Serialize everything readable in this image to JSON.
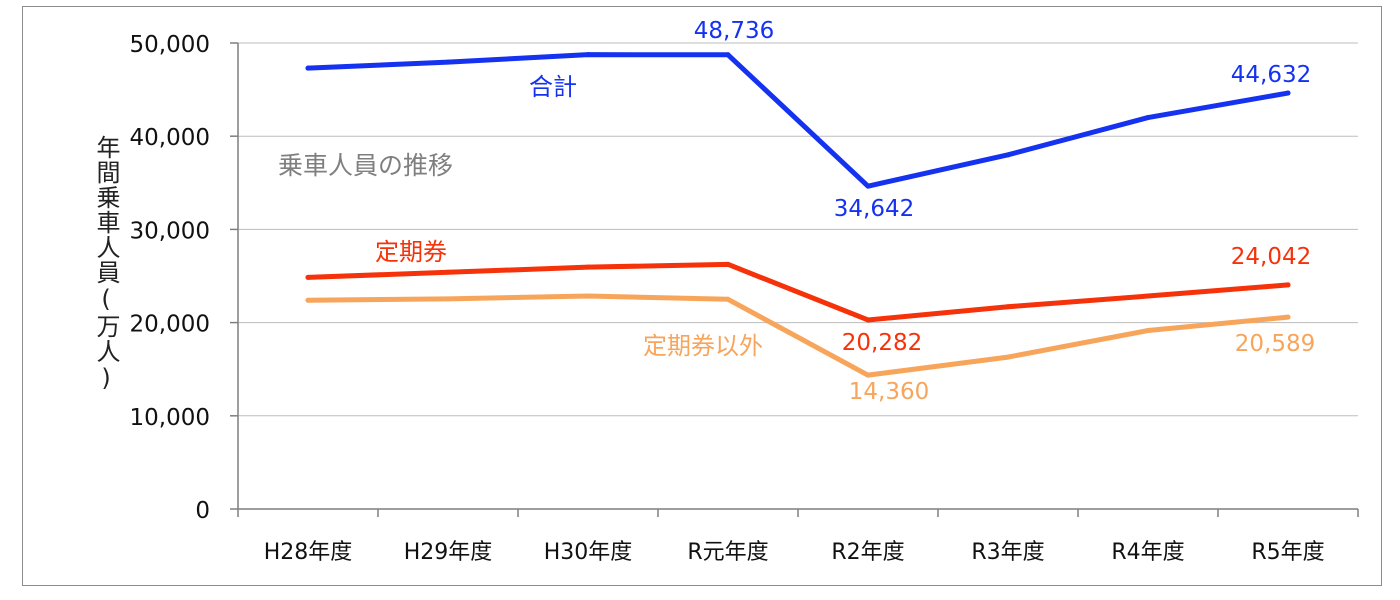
{
  "chart_data": {
    "type": "line",
    "title": "乗車人員の推移",
    "ylabel": "年間乗車人員(万人)",
    "xlabel": "",
    "ylim": [
      0,
      50000
    ],
    "yticks": [
      0,
      10000,
      20000,
      30000,
      40000,
      50000
    ],
    "ytick_labels": [
      "0",
      "10,000",
      "20,000",
      "30,000",
      "40,000",
      "50,000"
    ],
    "grid": true,
    "categories": [
      "H28年度",
      "H29年度",
      "H30年度",
      "R元年度",
      "R2年度",
      "R3年度",
      "R4年度",
      "R5年度"
    ],
    "series": [
      {
        "name": "合計",
        "color": "#1432f0",
        "values": [
          47300,
          47950,
          48750,
          48736,
          34642,
          38000,
          42000,
          44632
        ],
        "data_labels": [
          null,
          null,
          null,
          "48,736",
          "34,642",
          null,
          null,
          "44,632"
        ]
      },
      {
        "name": "定期券",
        "color": "#f5320a",
        "values": [
          24850,
          25400,
          25950,
          26250,
          20282,
          21700,
          22850,
          24042
        ],
        "data_labels": [
          null,
          null,
          null,
          null,
          "20,282",
          null,
          null,
          "24,042"
        ]
      },
      {
        "name": "定期券以外",
        "color": "#f8a55c",
        "values": [
          22400,
          22550,
          22850,
          22500,
          14360,
          16300,
          19150,
          20589
        ],
        "data_labels": [
          null,
          null,
          null,
          null,
          "14,360",
          null,
          null,
          "20,589"
        ]
      }
    ]
  }
}
